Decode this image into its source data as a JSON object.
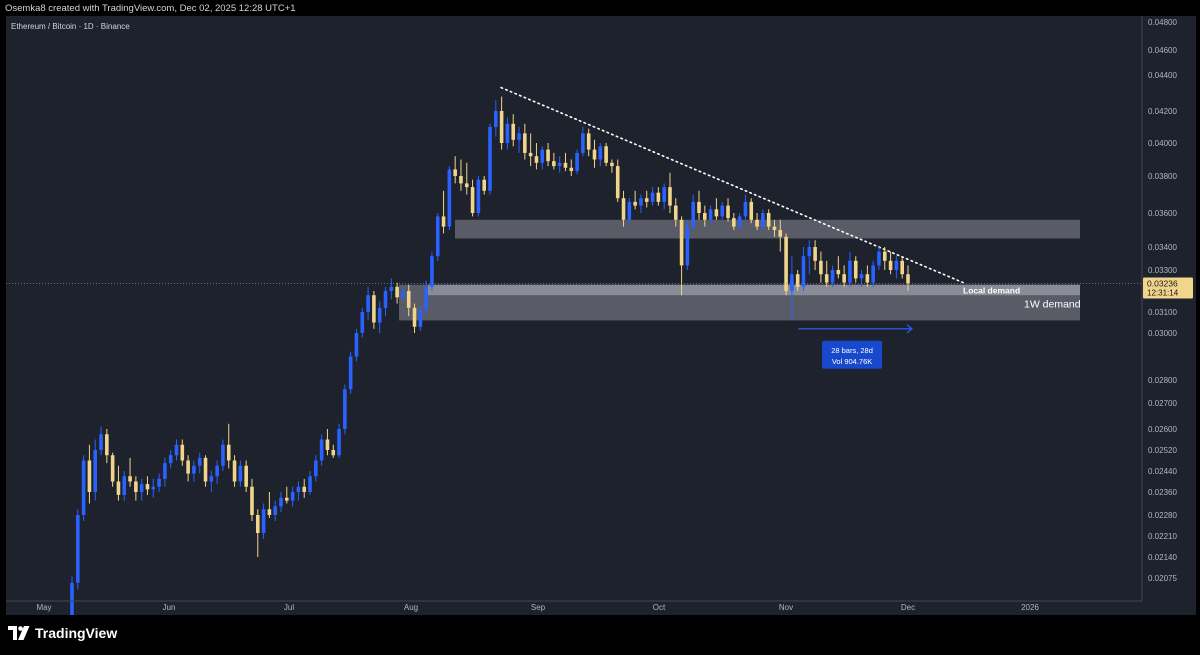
{
  "header": {
    "credit": "Osemka8 created with TradingView.com, Dec 02, 2025 12:28 UTC+1"
  },
  "chart_title": "Ethereum / Bitcoin · 1D · Binance",
  "brand": {
    "logo_text": "TradingView"
  },
  "colors": {
    "background": "#1e222d",
    "candle_up": "#2962ff",
    "candle_down": "#f0d58a",
    "zone_fill": "#b2b5be",
    "trendline": "#ffffff",
    "price_label_bg": "#f0d58a",
    "measure": "#2962ff"
  },
  "chart_data": {
    "type": "candlestick",
    "title": "Ethereum / Bitcoin · 1D · Binance",
    "x_ticks": [
      "May",
      "Jun",
      "Jul",
      "Aug",
      "Sep",
      "Oct",
      "Nov",
      "Dec",
      "2026"
    ],
    "y_ticks": [
      "0.04800",
      "0.04600",
      "0.04400",
      "0.04200",
      "0.04000",
      "0.03800",
      "0.03600",
      "0.03400",
      "0.03300",
      "0.03100",
      "0.03000",
      "0.02800",
      "0.02700",
      "0.02600",
      "0.02520",
      "0.02440",
      "0.02360",
      "0.02280",
      "0.02210",
      "0.02140",
      "0.02075"
    ],
    "last_price": "0.03236",
    "countdown": "12:31:14",
    "zones": [
      {
        "label": "",
        "from": 0.0345,
        "to": 0.0356
      },
      {
        "label": "Local demand",
        "from": 0.0318,
        "to": 0.0323
      },
      {
        "label": "1W demand",
        "from": 0.0306,
        "to": 0.0323
      }
    ],
    "trendline": {
      "from": {
        "date": "2025-08-23",
        "price": 0.0433
      },
      "to": {
        "date": "2025-12-15",
        "price": 0.0324
      }
    },
    "measure": {
      "bars_text": "28 bars, 28d",
      "vol_text": "Vol 904.76K",
      "from": "2025-11-04",
      "to": "2025-12-02"
    },
    "candles": [
      {
        "o": 0.019,
        "h": 0.0208,
        "l": 0.0188,
        "c": 0.0206
      },
      {
        "o": 0.0206,
        "h": 0.023,
        "l": 0.0204,
        "c": 0.0228
      },
      {
        "o": 0.0228,
        "h": 0.025,
        "l": 0.0226,
        "c": 0.0248
      },
      {
        "o": 0.0248,
        "h": 0.0254,
        "l": 0.0232,
        "c": 0.0236
      },
      {
        "o": 0.0236,
        "h": 0.0256,
        "l": 0.0233,
        "c": 0.0252
      },
      {
        "o": 0.0252,
        "h": 0.0261,
        "l": 0.025,
        "c": 0.0258
      },
      {
        "o": 0.0258,
        "h": 0.026,
        "l": 0.0247,
        "c": 0.025
      },
      {
        "o": 0.025,
        "h": 0.0251,
        "l": 0.0238,
        "c": 0.024
      },
      {
        "o": 0.024,
        "h": 0.0246,
        "l": 0.0233,
        "c": 0.0235
      },
      {
        "o": 0.0235,
        "h": 0.0244,
        "l": 0.0233,
        "c": 0.0242
      },
      {
        "o": 0.0242,
        "h": 0.0249,
        "l": 0.0238,
        "c": 0.024
      },
      {
        "o": 0.024,
        "h": 0.0242,
        "l": 0.0233,
        "c": 0.0236
      },
      {
        "o": 0.0236,
        "h": 0.0241,
        "l": 0.0233,
        "c": 0.0239
      },
      {
        "o": 0.0239,
        "h": 0.0242,
        "l": 0.0235,
        "c": 0.0237
      },
      {
        "o": 0.0237,
        "h": 0.0241,
        "l": 0.0234,
        "c": 0.0238
      },
      {
        "o": 0.0238,
        "h": 0.0243,
        "l": 0.0236,
        "c": 0.0241
      },
      {
        "o": 0.0241,
        "h": 0.0249,
        "l": 0.0238,
        "c": 0.0247
      },
      {
        "o": 0.0247,
        "h": 0.0252,
        "l": 0.0245,
        "c": 0.025
      },
      {
        "o": 0.025,
        "h": 0.0256,
        "l": 0.0248,
        "c": 0.0254
      },
      {
        "o": 0.0254,
        "h": 0.0256,
        "l": 0.0246,
        "c": 0.0248
      },
      {
        "o": 0.0248,
        "h": 0.025,
        "l": 0.024,
        "c": 0.0243
      },
      {
        "o": 0.0243,
        "h": 0.0248,
        "l": 0.024,
        "c": 0.0246
      },
      {
        "o": 0.0246,
        "h": 0.0251,
        "l": 0.0243,
        "c": 0.0249
      },
      {
        "o": 0.0249,
        "h": 0.025,
        "l": 0.0238,
        "c": 0.024
      },
      {
        "o": 0.024,
        "h": 0.0244,
        "l": 0.0236,
        "c": 0.0242
      },
      {
        "o": 0.0242,
        "h": 0.0248,
        "l": 0.0239,
        "c": 0.0246
      },
      {
        "o": 0.0246,
        "h": 0.0256,
        "l": 0.0244,
        "c": 0.0254
      },
      {
        "o": 0.0254,
        "h": 0.0262,
        "l": 0.0245,
        "c": 0.0248
      },
      {
        "o": 0.0248,
        "h": 0.025,
        "l": 0.0238,
        "c": 0.024
      },
      {
        "o": 0.024,
        "h": 0.0248,
        "l": 0.0238,
        "c": 0.0246
      },
      {
        "o": 0.0246,
        "h": 0.0248,
        "l": 0.0236,
        "c": 0.0238
      },
      {
        "o": 0.0238,
        "h": 0.0241,
        "l": 0.0226,
        "c": 0.0228
      },
      {
        "o": 0.0228,
        "h": 0.023,
        "l": 0.0214,
        "c": 0.0222
      },
      {
        "o": 0.0222,
        "h": 0.0232,
        "l": 0.022,
        "c": 0.023
      },
      {
        "o": 0.023,
        "h": 0.0236,
        "l": 0.0227,
        "c": 0.0228
      },
      {
        "o": 0.0228,
        "h": 0.0233,
        "l": 0.0226,
        "c": 0.0231
      },
      {
        "o": 0.0231,
        "h": 0.0236,
        "l": 0.0229,
        "c": 0.0234
      },
      {
        "o": 0.0234,
        "h": 0.0238,
        "l": 0.0232,
        "c": 0.0233
      },
      {
        "o": 0.0233,
        "h": 0.0238,
        "l": 0.0231,
        "c": 0.0236
      },
      {
        "o": 0.0236,
        "h": 0.024,
        "l": 0.0233,
        "c": 0.0238
      },
      {
        "o": 0.0238,
        "h": 0.0241,
        "l": 0.0234,
        "c": 0.0236
      },
      {
        "o": 0.0236,
        "h": 0.0244,
        "l": 0.0235,
        "c": 0.0242
      },
      {
        "o": 0.0242,
        "h": 0.025,
        "l": 0.024,
        "c": 0.0248
      },
      {
        "o": 0.0248,
        "h": 0.0258,
        "l": 0.0246,
        "c": 0.0256
      },
      {
        "o": 0.0256,
        "h": 0.026,
        "l": 0.025,
        "c": 0.0252
      },
      {
        "o": 0.0252,
        "h": 0.0254,
        "l": 0.0249,
        "c": 0.025
      },
      {
        "o": 0.025,
        "h": 0.0262,
        "l": 0.0249,
        "c": 0.026
      },
      {
        "o": 0.026,
        "h": 0.0278,
        "l": 0.0258,
        "c": 0.0276
      },
      {
        "o": 0.0276,
        "h": 0.0292,
        "l": 0.0274,
        "c": 0.029
      },
      {
        "o": 0.029,
        "h": 0.0302,
        "l": 0.0288,
        "c": 0.03
      },
      {
        "o": 0.03,
        "h": 0.0312,
        "l": 0.0298,
        "c": 0.031
      },
      {
        "o": 0.031,
        "h": 0.0322,
        "l": 0.0306,
        "c": 0.0318
      },
      {
        "o": 0.0318,
        "h": 0.032,
        "l": 0.0302,
        "c": 0.0305
      },
      {
        "o": 0.0305,
        "h": 0.0315,
        "l": 0.03,
        "c": 0.0312
      },
      {
        "o": 0.0312,
        "h": 0.0322,
        "l": 0.0308,
        "c": 0.032
      },
      {
        "o": 0.032,
        "h": 0.0326,
        "l": 0.0316,
        "c": 0.0322
      },
      {
        "o": 0.0322,
        "h": 0.0324,
        "l": 0.0314,
        "c": 0.0317
      },
      {
        "o": 0.0317,
        "h": 0.0322,
        "l": 0.0315,
        "c": 0.032
      },
      {
        "o": 0.032,
        "h": 0.0323,
        "l": 0.0308,
        "c": 0.0312
      },
      {
        "o": 0.0312,
        "h": 0.0314,
        "l": 0.03,
        "c": 0.0303
      },
      {
        "o": 0.0303,
        "h": 0.0313,
        "l": 0.0301,
        "c": 0.0311
      },
      {
        "o": 0.0311,
        "h": 0.0325,
        "l": 0.0309,
        "c": 0.0322
      },
      {
        "o": 0.0322,
        "h": 0.0338,
        "l": 0.032,
        "c": 0.0336
      },
      {
        "o": 0.0336,
        "h": 0.036,
        "l": 0.0334,
        "c": 0.0358
      },
      {
        "o": 0.0358,
        "h": 0.0372,
        "l": 0.0348,
        "c": 0.0352
      },
      {
        "o": 0.0352,
        "h": 0.0386,
        "l": 0.035,
        "c": 0.0384
      },
      {
        "o": 0.0384,
        "h": 0.0392,
        "l": 0.0376,
        "c": 0.038
      },
      {
        "o": 0.038,
        "h": 0.039,
        "l": 0.0372,
        "c": 0.0376
      },
      {
        "o": 0.0376,
        "h": 0.0388,
        "l": 0.037,
        "c": 0.0374
      },
      {
        "o": 0.0374,
        "h": 0.0378,
        "l": 0.0358,
        "c": 0.036
      },
      {
        "o": 0.036,
        "h": 0.038,
        "l": 0.0358,
        "c": 0.0378
      },
      {
        "o": 0.0378,
        "h": 0.038,
        "l": 0.037,
        "c": 0.0372
      },
      {
        "o": 0.0372,
        "h": 0.0412,
        "l": 0.037,
        "c": 0.041
      },
      {
        "o": 0.041,
        "h": 0.0426,
        "l": 0.0404,
        "c": 0.042
      },
      {
        "o": 0.042,
        "h": 0.0428,
        "l": 0.0396,
        "c": 0.04
      },
      {
        "o": 0.04,
        "h": 0.0416,
        "l": 0.0396,
        "c": 0.0412
      },
      {
        "o": 0.0412,
        "h": 0.0418,
        "l": 0.0398,
        "c": 0.0402
      },
      {
        "o": 0.0402,
        "h": 0.041,
        "l": 0.0394,
        "c": 0.0406
      },
      {
        "o": 0.0406,
        "h": 0.0412,
        "l": 0.039,
        "c": 0.0394
      },
      {
        "o": 0.0394,
        "h": 0.0406,
        "l": 0.0386,
        "c": 0.0392
      },
      {
        "o": 0.0392,
        "h": 0.04,
        "l": 0.0384,
        "c": 0.0388
      },
      {
        "o": 0.0388,
        "h": 0.0398,
        "l": 0.0384,
        "c": 0.0396
      },
      {
        "o": 0.0396,
        "h": 0.04,
        "l": 0.0386,
        "c": 0.0389
      },
      {
        "o": 0.0389,
        "h": 0.0394,
        "l": 0.0384,
        "c": 0.0386
      },
      {
        "o": 0.0386,
        "h": 0.0392,
        "l": 0.0382,
        "c": 0.0388
      },
      {
        "o": 0.0388,
        "h": 0.0394,
        "l": 0.0383,
        "c": 0.0385
      },
      {
        "o": 0.0385,
        "h": 0.039,
        "l": 0.038,
        "c": 0.0383
      },
      {
        "o": 0.0383,
        "h": 0.0396,
        "l": 0.0381,
        "c": 0.0394
      },
      {
        "o": 0.0394,
        "h": 0.041,
        "l": 0.0392,
        "c": 0.0406
      },
      {
        "o": 0.0406,
        "h": 0.0409,
        "l": 0.0392,
        "c": 0.0396
      },
      {
        "o": 0.0396,
        "h": 0.0402,
        "l": 0.0385,
        "c": 0.039
      },
      {
        "o": 0.039,
        "h": 0.04,
        "l": 0.0386,
        "c": 0.0398
      },
      {
        "o": 0.0398,
        "h": 0.04,
        "l": 0.0386,
        "c": 0.0388
      },
      {
        "o": 0.0388,
        "h": 0.039,
        "l": 0.0382,
        "c": 0.0386
      },
      {
        "o": 0.0386,
        "h": 0.039,
        "l": 0.0366,
        "c": 0.0368
      },
      {
        "o": 0.0368,
        "h": 0.0372,
        "l": 0.0352,
        "c": 0.0356
      },
      {
        "o": 0.0356,
        "h": 0.0368,
        "l": 0.0354,
        "c": 0.0366
      },
      {
        "o": 0.0366,
        "h": 0.0372,
        "l": 0.0362,
        "c": 0.0364
      },
      {
        "o": 0.0364,
        "h": 0.037,
        "l": 0.036,
        "c": 0.0368
      },
      {
        "o": 0.0368,
        "h": 0.0372,
        "l": 0.0363,
        "c": 0.0366
      },
      {
        "o": 0.0366,
        "h": 0.0374,
        "l": 0.0364,
        "c": 0.0371
      },
      {
        "o": 0.0371,
        "h": 0.0374,
        "l": 0.0364,
        "c": 0.0366
      },
      {
        "o": 0.0366,
        "h": 0.0376,
        "l": 0.0362,
        "c": 0.0374
      },
      {
        "o": 0.0374,
        "h": 0.0382,
        "l": 0.036,
        "c": 0.0364
      },
      {
        "o": 0.0364,
        "h": 0.0368,
        "l": 0.0352,
        "c": 0.0356
      },
      {
        "o": 0.0356,
        "h": 0.0358,
        "l": 0.0318,
        "c": 0.0332
      },
      {
        "o": 0.0332,
        "h": 0.0356,
        "l": 0.033,
        "c": 0.0352
      },
      {
        "o": 0.0352,
        "h": 0.037,
        "l": 0.035,
        "c": 0.0366
      },
      {
        "o": 0.0366,
        "h": 0.0372,
        "l": 0.0356,
        "c": 0.036
      },
      {
        "o": 0.036,
        "h": 0.0364,
        "l": 0.0352,
        "c": 0.0356
      },
      {
        "o": 0.0356,
        "h": 0.0364,
        "l": 0.0354,
        "c": 0.0362
      },
      {
        "o": 0.0362,
        "h": 0.0368,
        "l": 0.0356,
        "c": 0.0358
      },
      {
        "o": 0.0358,
        "h": 0.0366,
        "l": 0.0356,
        "c": 0.0364
      },
      {
        "o": 0.0364,
        "h": 0.0368,
        "l": 0.0355,
        "c": 0.0357
      },
      {
        "o": 0.0357,
        "h": 0.036,
        "l": 0.035,
        "c": 0.0352
      },
      {
        "o": 0.0352,
        "h": 0.036,
        "l": 0.035,
        "c": 0.0358
      },
      {
        "o": 0.0358,
        "h": 0.037,
        "l": 0.0356,
        "c": 0.0366
      },
      {
        "o": 0.0366,
        "h": 0.0368,
        "l": 0.0354,
        "c": 0.0356
      },
      {
        "o": 0.0356,
        "h": 0.036,
        "l": 0.035,
        "c": 0.0352
      },
      {
        "o": 0.0352,
        "h": 0.0362,
        "l": 0.035,
        "c": 0.036
      },
      {
        "o": 0.036,
        "h": 0.0362,
        "l": 0.035,
        "c": 0.0352
      },
      {
        "o": 0.0352,
        "h": 0.0356,
        "l": 0.0346,
        "c": 0.035
      },
      {
        "o": 0.035,
        "h": 0.0356,
        "l": 0.0338,
        "c": 0.0346
      },
      {
        "o": 0.0346,
        "h": 0.0348,
        "l": 0.0318,
        "c": 0.032
      },
      {
        "o": 0.032,
        "h": 0.0336,
        "l": 0.0306,
        "c": 0.0328
      },
      {
        "o": 0.0328,
        "h": 0.033,
        "l": 0.032,
        "c": 0.0322
      },
      {
        "o": 0.0322,
        "h": 0.034,
        "l": 0.032,
        "c": 0.0336
      },
      {
        "o": 0.0336,
        "h": 0.0344,
        "l": 0.0328,
        "c": 0.034
      },
      {
        "o": 0.034,
        "h": 0.0344,
        "l": 0.033,
        "c": 0.0334
      },
      {
        "o": 0.0334,
        "h": 0.0338,
        "l": 0.0324,
        "c": 0.0328
      },
      {
        "o": 0.0328,
        "h": 0.0334,
        "l": 0.0322,
        "c": 0.0324
      },
      {
        "o": 0.0324,
        "h": 0.0332,
        "l": 0.0322,
        "c": 0.033
      },
      {
        "o": 0.033,
        "h": 0.0336,
        "l": 0.0326,
        "c": 0.0328
      },
      {
        "o": 0.0328,
        "h": 0.0332,
        "l": 0.0322,
        "c": 0.0324
      },
      {
        "o": 0.0324,
        "h": 0.0338,
        "l": 0.0322,
        "c": 0.0334
      },
      {
        "o": 0.0334,
        "h": 0.0336,
        "l": 0.0324,
        "c": 0.0326
      },
      {
        "o": 0.0326,
        "h": 0.033,
        "l": 0.0322,
        "c": 0.0328
      },
      {
        "o": 0.0328,
        "h": 0.0332,
        "l": 0.0322,
        "c": 0.0324
      },
      {
        "o": 0.0324,
        "h": 0.0334,
        "l": 0.0322,
        "c": 0.0332
      },
      {
        "o": 0.0332,
        "h": 0.034,
        "l": 0.033,
        "c": 0.0338
      },
      {
        "o": 0.0338,
        "h": 0.034,
        "l": 0.033,
        "c": 0.0334
      },
      {
        "o": 0.0334,
        "h": 0.0338,
        "l": 0.0328,
        "c": 0.033
      },
      {
        "o": 0.033,
        "h": 0.0336,
        "l": 0.0326,
        "c": 0.0334
      },
      {
        "o": 0.0334,
        "h": 0.0336,
        "l": 0.0326,
        "c": 0.0328
      },
      {
        "o": 0.0328,
        "h": 0.0332,
        "l": 0.032,
        "c": 0.03236
      }
    ]
  }
}
